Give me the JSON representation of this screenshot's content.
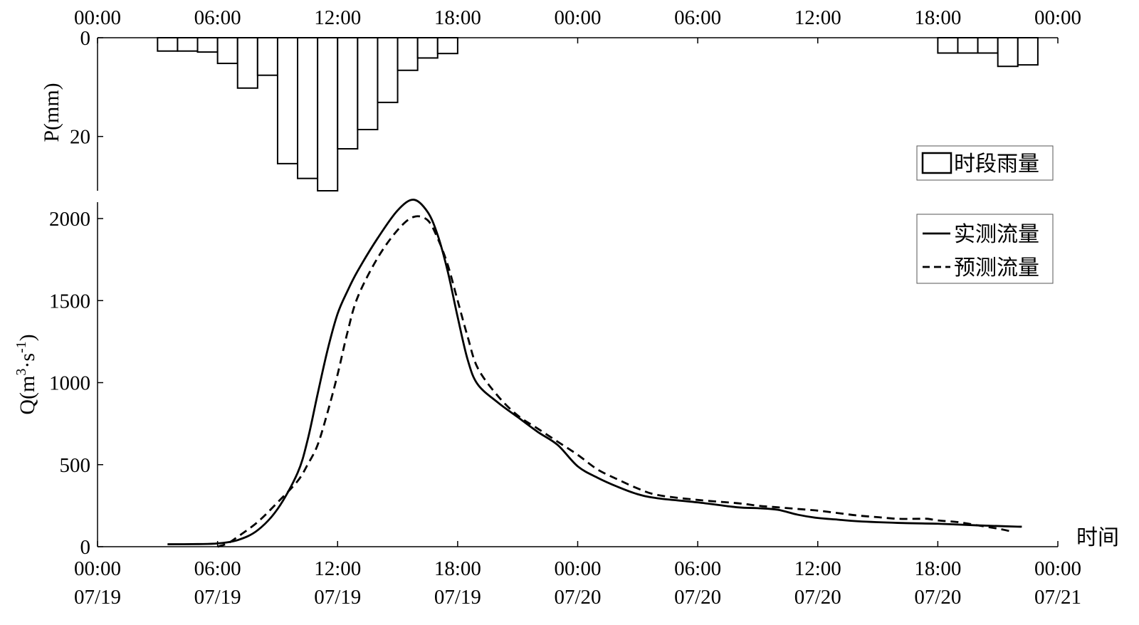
{
  "chart_data": [
    {
      "type": "bar",
      "orientation": "downward",
      "ylabel": "P(mm)",
      "ylim": [
        0,
        31
      ],
      "yticks": [
        0,
        20
      ],
      "x_top_ticks": [
        "00:00",
        "06:00",
        "12:00",
        "18:00",
        "00:00",
        "06:00",
        "12:00",
        "18:00",
        "00:00"
      ],
      "grid": false,
      "legend": {
        "placement": "bottom-right",
        "entries": [
          "时段雨量"
        ]
      },
      "series": [
        {
          "name": "时段雨量",
          "interval_hours": 1,
          "start_hours": [
            3,
            4,
            5,
            6,
            7,
            8,
            9,
            10,
            11,
            12,
            13,
            14,
            15,
            16,
            17,
            42,
            43,
            44,
            45,
            46
          ],
          "values": [
            2.7,
            2.7,
            2.9,
            5.2,
            10.2,
            7.6,
            25.5,
            28.5,
            31.0,
            22.5,
            18.6,
            13.1,
            6.6,
            4.1,
            3.2,
            3.1,
            3.1,
            3.1,
            5.8,
            5.5
          ]
        }
      ]
    },
    {
      "type": "line",
      "ylabel": "Q(m³·s⁻¹)",
      "ylabel_parts": {
        "a": "Q(m",
        "sup1": "3",
        "b": "·s",
        "sup2": "-1",
        "c": ")"
      },
      "xlabel": "时间",
      "xlim": [
        0,
        48
      ],
      "ylim": [
        0,
        2100
      ],
      "yticks": [
        0,
        500,
        1000,
        1500,
        2000
      ],
      "xticks": [
        {
          "time": "00:00",
          "date": "07/19"
        },
        {
          "time": "06:00",
          "date": "07/19"
        },
        {
          "time": "12:00",
          "date": "07/19"
        },
        {
          "time": "18:00",
          "date": "07/19"
        },
        {
          "time": "00:00",
          "date": "07/20"
        },
        {
          "time": "06:00",
          "date": "07/20"
        },
        {
          "time": "12:00",
          "date": "07/20"
        },
        {
          "time": "18:00",
          "date": "07/20"
        },
        {
          "time": "00:00",
          "date": "07/21"
        }
      ],
      "grid": false,
      "legend": {
        "placement": "top-right",
        "entries": [
          "实测流量",
          "预测流量"
        ]
      },
      "series": [
        {
          "name": "实测流量",
          "style": "solid",
          "x_hours": [
            3.5,
            5,
            6,
            7,
            8,
            9,
            10,
            10.5,
            11,
            11.5,
            12,
            12.5,
            13,
            14,
            15,
            15.8,
            16.5,
            17,
            17.5,
            18,
            18.5,
            19,
            20,
            21,
            22,
            23,
            24,
            25,
            26,
            27,
            28,
            30,
            32,
            33,
            34,
            35,
            36,
            37,
            38,
            40,
            42,
            43,
            44,
            45,
            46,
            46.2
          ],
          "values": [
            15,
            16,
            20,
            40,
            100,
            230,
            450,
            650,
            930,
            1200,
            1420,
            1560,
            1680,
            1880,
            2050,
            2115,
            2040,
            1900,
            1680,
            1400,
            1140,
            990,
            880,
            790,
            700,
            620,
            490,
            420,
            365,
            320,
            295,
            270,
            240,
            235,
            225,
            195,
            175,
            165,
            155,
            145,
            140,
            135,
            130,
            126,
            122,
            122
          ]
        },
        {
          "name": "预测流量",
          "style": "dashed",
          "x_hours": [
            6,
            6.5,
            7,
            8,
            9,
            10,
            10.5,
            11,
            11.5,
            12,
            12.5,
            13,
            14,
            15,
            15.8,
            16.5,
            17,
            17.5,
            18,
            18.5,
            19,
            20,
            21,
            22,
            23,
            24,
            25,
            26,
            27,
            28,
            30,
            32,
            33,
            34,
            35,
            36,
            37,
            38,
            39,
            40,
            41,
            41.5,
            42,
            43,
            44,
            45,
            45.6
          ],
          "values": [
            0,
            20,
            60,
            150,
            270,
            400,
            500,
            620,
            820,
            1050,
            1310,
            1520,
            1760,
            1930,
            2010,
            1990,
            1880,
            1720,
            1500,
            1280,
            1090,
            920,
            800,
            720,
            640,
            560,
            470,
            410,
            355,
            315,
            285,
            265,
            250,
            240,
            230,
            220,
            205,
            190,
            180,
            170,
            170,
            170,
            160,
            150,
            130,
            110,
            95
          ]
        }
      ]
    }
  ]
}
